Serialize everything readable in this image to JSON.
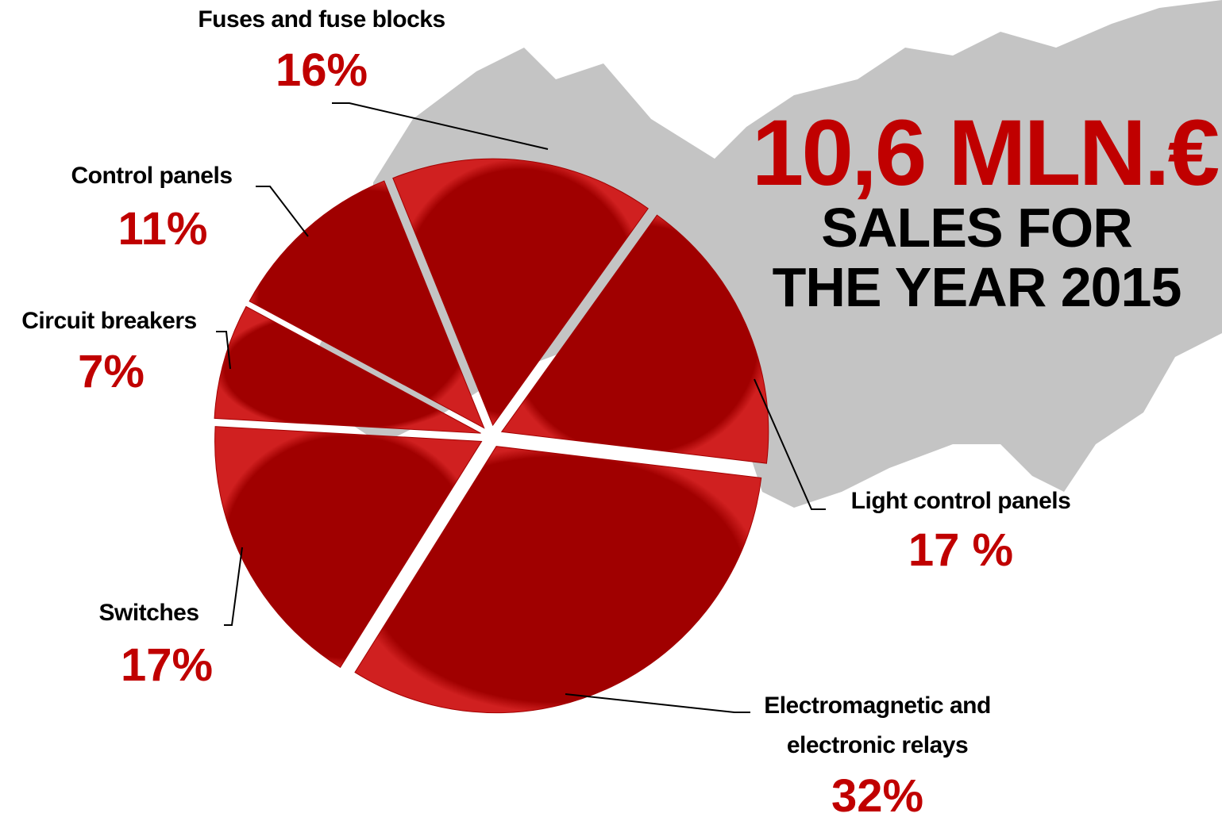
{
  "chart_data": {
    "type": "pie",
    "title": "10,6 MLN.€",
    "subtitle": "SALES FOR THE YEAR 2015",
    "categories": [
      "Fuses and fuse blocks",
      "Light control panels",
      "Electromagnetic and electronic relays",
      "Switches",
      "Circuit breakers",
      "Control panels"
    ],
    "values": [
      16,
      17,
      32,
      17,
      7,
      11
    ],
    "value_labels": [
      "16%",
      "17 %",
      "32%",
      "17%",
      "7%",
      "11%"
    ],
    "color": "#a30000"
  }
}
